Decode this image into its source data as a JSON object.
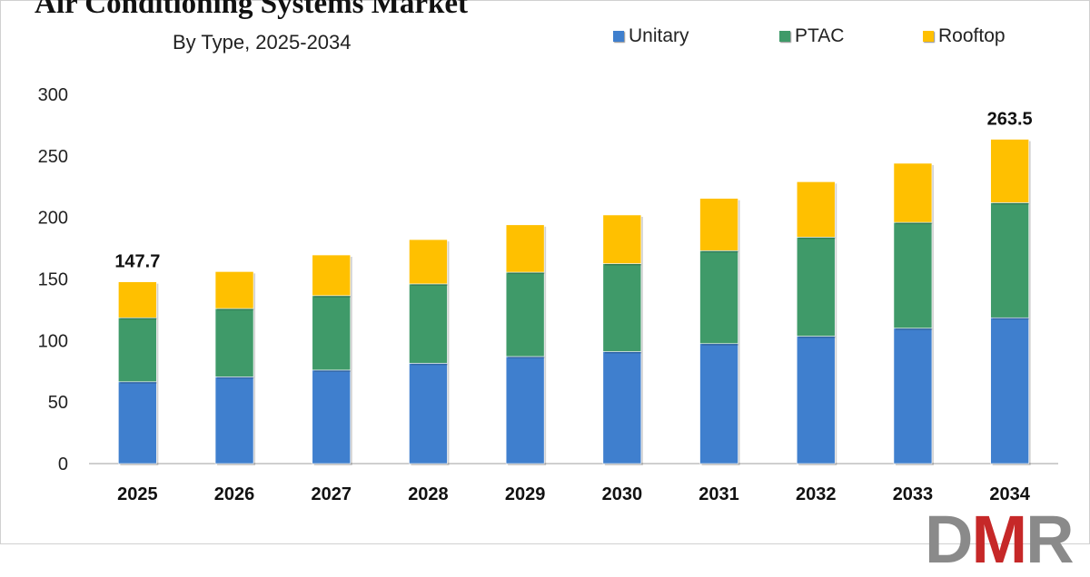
{
  "title": "Air Conditioning Systems Market",
  "subtitle": "By Type, 2025-2034",
  "logo": {
    "l1": "D",
    "l2": "M",
    "l3": "R"
  },
  "colors": {
    "unitary": "#3f7fce",
    "ptac": "#3f9a69",
    "rooftop": "#ffc000",
    "axis": "#bfbfbf",
    "text": "#222222"
  },
  "chart_data": {
    "type": "bar",
    "stacked": true,
    "categories": [
      "2025",
      "2026",
      "2027",
      "2028",
      "2029",
      "2030",
      "2031",
      "2032",
      "2033",
      "2034"
    ],
    "series": [
      {
        "name": "Unitary",
        "values": [
          66.5,
          70.5,
          76.0,
          81.5,
          87.0,
          91.0,
          97.5,
          103.5,
          110.0,
          118.5
        ]
      },
      {
        "name": "PTAC",
        "values": [
          52.0,
          55.5,
          60.5,
          64.5,
          68.5,
          71.5,
          75.5,
          80.5,
          86.0,
          93.5
        ]
      },
      {
        "name": "Rooftop",
        "values": [
          29.2,
          30.0,
          33.0,
          36.0,
          38.5,
          39.5,
          42.5,
          45.0,
          48.0,
          51.5
        ]
      }
    ],
    "ylim": [
      0,
      300
    ],
    "yticks": [
      0,
      50,
      100,
      150,
      200,
      250,
      300
    ],
    "annotations": [
      {
        "category": "2025",
        "text": "147.7"
      },
      {
        "category": "2034",
        "text": "263.5"
      }
    ],
    "legend_position": "top-right",
    "grid": false
  }
}
